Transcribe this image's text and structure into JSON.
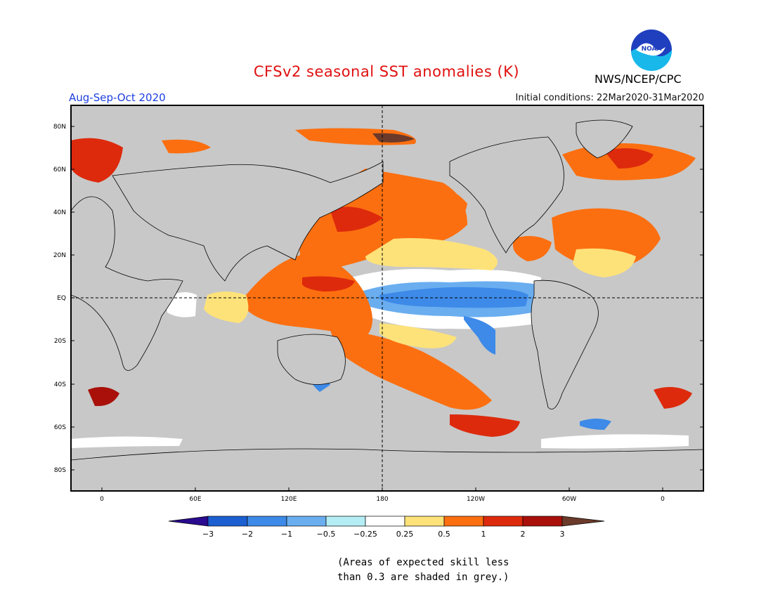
{
  "title": "CFSv2 seasonal SST anomalies (K)",
  "season": "Aug-Sep-Oct 2020",
  "initial_conditions": "Initial conditions: 22Mar2020-31Mar2020",
  "agency": "NWS/NCEP/CPC",
  "logo_text": "NOAA",
  "lat_ticks": [
    "80N",
    "60N",
    "40N",
    "20N",
    "EQ",
    "20S",
    "40S",
    "60S",
    "80S"
  ],
  "lon_ticks": [
    "0",
    "60E",
    "120E",
    "180",
    "120W",
    "60W",
    "0"
  ],
  "colorbar": {
    "labels": [
      "−3",
      "−2",
      "−1",
      "−0.5",
      "−0.25",
      "0.25",
      "0.5",
      "1",
      "2",
      "3"
    ],
    "colors": [
      "#2a0a8e",
      "#1c5fd1",
      "#3d8ae8",
      "#6aaef0",
      "#b4eef4",
      "#ffffff",
      "#fde27a",
      "#fb6f10",
      "#dd2a0c",
      "#a9100a",
      "#6b3a2a"
    ]
  },
  "note": [
    "(Areas of expected skill less",
    "than 0.3 are shaded in grey.)"
  ],
  "colors": {
    "ocean_grey": "#c8c8c8",
    "title_red": "#e01010",
    "season_blue": "#1d3fe0"
  }
}
